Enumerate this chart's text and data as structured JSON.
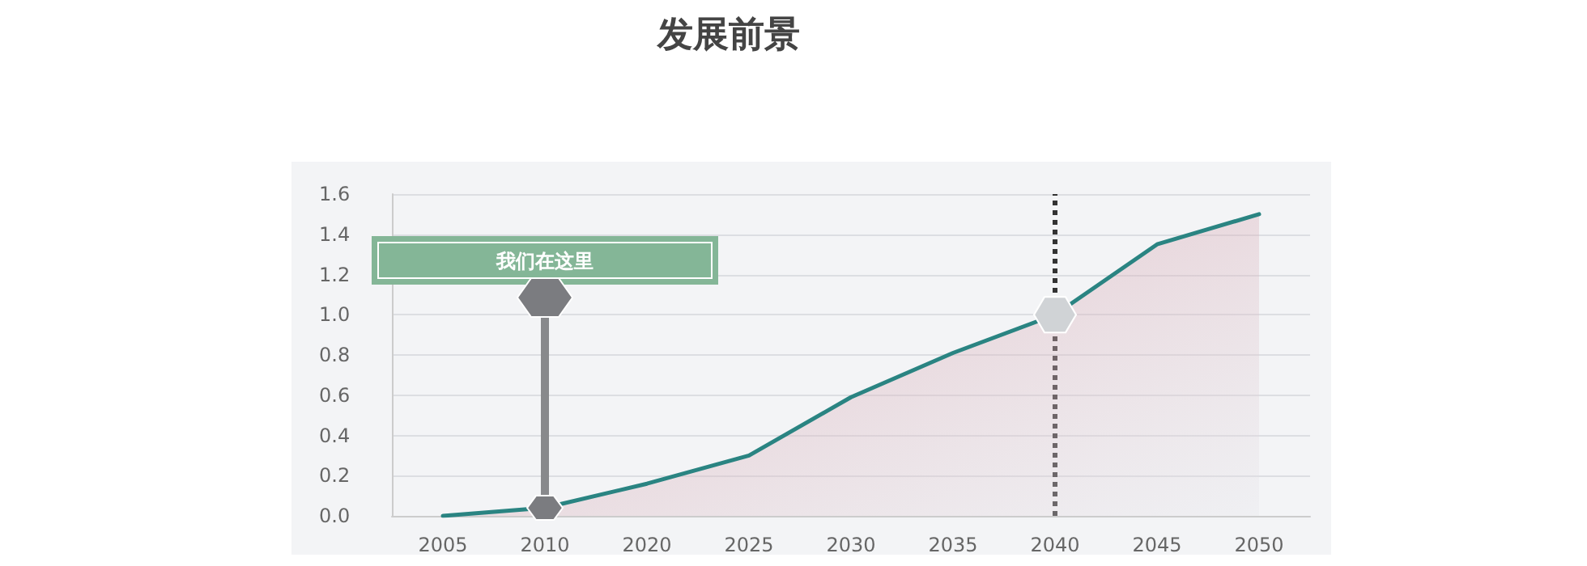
{
  "chart_data": {
    "type": "area",
    "title": "发展前景",
    "categories": [
      "2005",
      "2010",
      "2020",
      "2025",
      "2030",
      "2035",
      "2040",
      "2045",
      "2050"
    ],
    "series": [
      {
        "color": "#2a8482",
        "values": [
          0.0,
          0.04,
          0.16,
          0.3,
          0.59,
          0.81,
          1.0,
          1.35,
          1.5
        ]
      }
    ],
    "ylim": [
      0,
      1.6
    ],
    "yticks": [
      {
        "value": 0,
        "label": "0.0"
      },
      0.2,
      0.4,
      0.6,
      0.8,
      {
        "value": 1,
        "label": "1.0"
      },
      1.2,
      1.4,
      1.6
    ],
    "grid": "y",
    "marker": "none",
    "line_style": "solid",
    "ref_lines": [
      {
        "axis": "x",
        "value": "2040",
        "color": "#333333",
        "line_style": "dotted"
      }
    ],
    "annotations": [
      "我们在这里"
    ]
  }
}
